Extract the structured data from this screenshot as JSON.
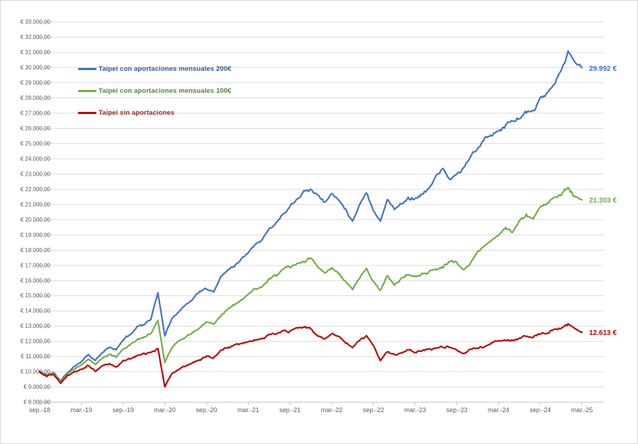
{
  "chart": {
    "background": "#ffffff",
    "border_color": "#d6d6d6",
    "gridline_color": "#dadada",
    "axis_line_color": "#bfbfbf",
    "tick_label_color": "#595959"
  },
  "chart_data": {
    "type": "line",
    "title": "",
    "grid": true,
    "legend_position": "inside-top-left",
    "x_range": {
      "start": "2018-09",
      "end": "2025-03",
      "frequency": "monthly"
    },
    "x_tick_labels": [
      "sep.-18",
      "mar.-19",
      "sep.-19",
      "mar.-20",
      "sep.-20",
      "mar.-21",
      "sep.-21",
      "mar.-22",
      "sep.-22",
      "mar.-23",
      "sep.-23",
      "mar.-24",
      "sep.-24",
      "mar.-25"
    ],
    "y_axis": {
      "min": 8000,
      "max": 33000,
      "step": 1000,
      "format": {
        "prefix": "€ ",
        "thousands": ".",
        "decimals": ",00"
      }
    },
    "series": [
      {
        "name": "Taipei con aportaciones mensuales 200€",
        "color": "#4472c4",
        "label_color": "#2f5597",
        "end_label": "29.992 €",
        "end_value": 29992,
        "values": [
          10000,
          9800,
          9950,
          9400,
          9950,
          10350,
          10700,
          11150,
          10750,
          11250,
          11600,
          11450,
          12100,
          12450,
          12950,
          13150,
          13500,
          15200,
          12350,
          13500,
          14000,
          14400,
          14800,
          15300,
          15400,
          15250,
          16200,
          16700,
          17000,
          17400,
          17900,
          18450,
          18700,
          19400,
          19800,
          20400,
          20900,
          21400,
          21900,
          22000,
          21600,
          21150,
          21700,
          21300,
          20700,
          19900,
          21000,
          21800,
          20600,
          19950,
          21300,
          20750,
          21000,
          21450,
          21400,
          21700,
          22000,
          22900,
          23300,
          22600,
          23000,
          23400,
          24200,
          24600,
          25300,
          25600,
          25900,
          26200,
          26500,
          26700,
          27100,
          27000,
          27950,
          28300,
          28800,
          29800,
          31000,
          30300,
          29992
        ]
      },
      {
        "name": "Taipei con aportaciones mensuales 100€",
        "color": "#70ad47",
        "label_color": "#538135",
        "end_label": "21.303 €",
        "end_value": 21303,
        "values": [
          10000,
          9750,
          9900,
          9300,
          9850,
          10200,
          10450,
          10850,
          10450,
          10900,
          11200,
          11000,
          11500,
          11750,
          12100,
          12300,
          12500,
          13400,
          10600,
          11600,
          12000,
          12300,
          12600,
          12900,
          13300,
          13150,
          13700,
          14100,
          14400,
          14700,
          15100,
          15500,
          15600,
          16050,
          16300,
          16700,
          16900,
          17100,
          17350,
          17400,
          16900,
          16500,
          16850,
          16500,
          15900,
          15450,
          16200,
          16800,
          15900,
          15350,
          16350,
          15700,
          16100,
          16450,
          16300,
          16400,
          16550,
          16750,
          16900,
          17200,
          17100,
          16700,
          17200,
          17900,
          18300,
          18700,
          19000,
          19300,
          19200,
          19900,
          20200,
          20100,
          20900,
          21100,
          21500,
          21700,
          22100,
          21500,
          21303
        ]
      },
      {
        "name": "Taipei sin aportaciones",
        "color": "#c00000",
        "label_color": "#9c1f1f",
        "end_label": "12.613 €",
        "end_value": 12613,
        "values": [
          10000,
          9700,
          9850,
          9250,
          9750,
          10000,
          10150,
          10450,
          10050,
          10400,
          10600,
          10350,
          10700,
          10850,
          11050,
          11150,
          11250,
          11550,
          9000,
          9900,
          10200,
          10400,
          10600,
          10800,
          11050,
          10900,
          11400,
          11600,
          11700,
          11800,
          11900,
          12100,
          12150,
          12400,
          12500,
          12650,
          12700,
          12850,
          12900,
          12800,
          12350,
          12150,
          12500,
          12300,
          11900,
          11600,
          12100,
          12400,
          11700,
          10750,
          11300,
          11100,
          11300,
          11450,
          11350,
          11400,
          11450,
          11550,
          11650,
          11600,
          11450,
          11200,
          11500,
          11600,
          11700,
          11900,
          12000,
          12100,
          12050,
          12200,
          12350,
          12300,
          12500,
          12600,
          12750,
          12900,
          13100,
          12900,
          12613
        ]
      }
    ]
  }
}
